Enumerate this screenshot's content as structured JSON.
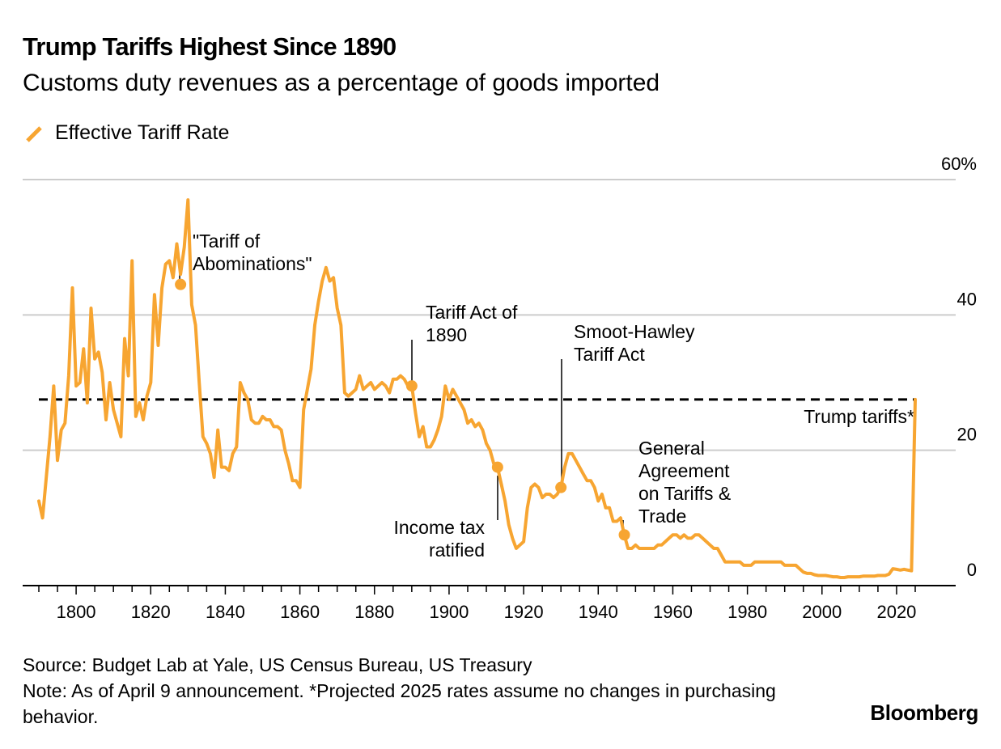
{
  "header": {
    "title": "Trump Tariffs Highest Since 1890",
    "subtitle": "Customs duty revenues as a percentage of goods imported"
  },
  "legend": {
    "label": "Effective Tariff Rate",
    "color": "#f7a531"
  },
  "colors": {
    "series": "#f7a531",
    "reference": "#000000",
    "grid": "#cccccc",
    "axis": "#000000"
  },
  "footer": {
    "source": "Source: Budget Lab at Yale, US Census Bureau, US Treasury",
    "note": "Note: As of April 9 announcement. *Projected 2025 rates assume no changes in purchasing behavior.",
    "brand": "Bloomberg"
  },
  "chart_data": {
    "type": "line",
    "title": "Trump Tariffs Highest Since 1890",
    "subtitle": "Customs duty revenues as a percentage of goods imported",
    "xlabel": "",
    "ylabel": "",
    "xlim": [
      1789,
      2026
    ],
    "ylim": [
      0,
      60
    ],
    "grid": true,
    "legend_position": "top-left",
    "x_ticks": [
      1800,
      1820,
      1840,
      1860,
      1880,
      1900,
      1920,
      1940,
      1960,
      1980,
      2000,
      2020
    ],
    "y_ticks": [
      {
        "value": 0,
        "label": "0"
      },
      {
        "value": 20,
        "label": "20"
      },
      {
        "value": 40,
        "label": "40"
      },
      {
        "value": 60,
        "label": "60%"
      }
    ],
    "series": [
      {
        "name": "Effective Tariff Rate",
        "color": "#f7a531",
        "points": [
          [
            1790,
            12.5
          ],
          [
            1791,
            10.0
          ],
          [
            1792,
            16.0
          ],
          [
            1793,
            22.0
          ],
          [
            1794,
            29.5
          ],
          [
            1795,
            18.5
          ],
          [
            1796,
            23.0
          ],
          [
            1797,
            24.0
          ],
          [
            1798,
            31.0
          ],
          [
            1799,
            44.0
          ],
          [
            1800,
            29.5
          ],
          [
            1801,
            30.0
          ],
          [
            1802,
            35.0
          ],
          [
            1803,
            27.0
          ],
          [
            1804,
            41.0
          ],
          [
            1805,
            33.5
          ],
          [
            1806,
            34.5
          ],
          [
            1807,
            31.5
          ],
          [
            1808,
            24.5
          ],
          [
            1809,
            30.0
          ],
          [
            1810,
            26.0
          ],
          [
            1811,
            24.0
          ],
          [
            1812,
            22.0
          ],
          [
            1813,
            36.5
          ],
          [
            1814,
            31.0
          ],
          [
            1815,
            48.0
          ],
          [
            1816,
            25.0
          ],
          [
            1817,
            27.0
          ],
          [
            1818,
            24.5
          ],
          [
            1819,
            28.0
          ],
          [
            1820,
            30.0
          ],
          [
            1821,
            43.0
          ],
          [
            1822,
            35.5
          ],
          [
            1823,
            44.0
          ],
          [
            1824,
            47.5
          ],
          [
            1825,
            48.0
          ],
          [
            1826,
            45.5
          ],
          [
            1827,
            50.5
          ],
          [
            1828,
            46.0
          ],
          [
            1829,
            50.0
          ],
          [
            1830,
            57.0
          ],
          [
            1831,
            41.5
          ],
          [
            1832,
            38.5
          ],
          [
            1833,
            30.0
          ],
          [
            1834,
            22.0
          ],
          [
            1835,
            21.0
          ],
          [
            1836,
            19.5
          ],
          [
            1837,
            16.0
          ],
          [
            1838,
            23.0
          ],
          [
            1839,
            17.5
          ],
          [
            1840,
            17.5
          ],
          [
            1841,
            17.0
          ],
          [
            1842,
            19.5
          ],
          [
            1843,
            20.5
          ],
          [
            1844,
            30.0
          ],
          [
            1845,
            28.5
          ],
          [
            1846,
            27.5
          ],
          [
            1847,
            24.5
          ],
          [
            1848,
            24.0
          ],
          [
            1849,
            24.0
          ],
          [
            1850,
            25.0
          ],
          [
            1851,
            24.5
          ],
          [
            1852,
            24.5
          ],
          [
            1853,
            23.5
          ],
          [
            1854,
            23.5
          ],
          [
            1855,
            23.0
          ],
          [
            1856,
            20.0
          ],
          [
            1857,
            18.0
          ],
          [
            1858,
            15.5
          ],
          [
            1859,
            15.5
          ],
          [
            1860,
            14.5
          ],
          [
            1861,
            26.0
          ],
          [
            1862,
            29.0
          ],
          [
            1863,
            32.0
          ],
          [
            1864,
            38.5
          ],
          [
            1865,
            42.0
          ],
          [
            1866,
            45.0
          ],
          [
            1867,
            47.0
          ],
          [
            1868,
            45.0
          ],
          [
            1869,
            45.5
          ],
          [
            1870,
            41.0
          ],
          [
            1871,
            38.5
          ],
          [
            1872,
            28.5
          ],
          [
            1873,
            28.0
          ],
          [
            1874,
            28.5
          ],
          [
            1875,
            29.0
          ],
          [
            1876,
            31.0
          ],
          [
            1877,
            29.0
          ],
          [
            1878,
            29.5
          ],
          [
            1879,
            30.0
          ],
          [
            1880,
            29.0
          ],
          [
            1881,
            29.5
          ],
          [
            1882,
            30.0
          ],
          [
            1883,
            29.5
          ],
          [
            1884,
            28.5
          ],
          [
            1885,
            30.5
          ],
          [
            1886,
            30.5
          ],
          [
            1887,
            31.0
          ],
          [
            1888,
            30.5
          ],
          [
            1889,
            29.5
          ],
          [
            1890,
            29.5
          ],
          [
            1891,
            25.5
          ],
          [
            1892,
            22.0
          ],
          [
            1893,
            23.5
          ],
          [
            1894,
            20.5
          ],
          [
            1895,
            20.5
          ],
          [
            1896,
            21.5
          ],
          [
            1897,
            23.0
          ],
          [
            1898,
            25.0
          ],
          [
            1899,
            29.5
          ],
          [
            1900,
            27.5
          ],
          [
            1901,
            29.0
          ],
          [
            1902,
            28.0
          ],
          [
            1903,
            27.0
          ],
          [
            1904,
            26.0
          ],
          [
            1905,
            24.0
          ],
          [
            1906,
            24.5
          ],
          [
            1907,
            23.5
          ],
          [
            1908,
            24.0
          ],
          [
            1909,
            23.0
          ],
          [
            1910,
            21.0
          ],
          [
            1911,
            20.0
          ],
          [
            1912,
            18.0
          ],
          [
            1913,
            17.5
          ],
          [
            1914,
            15.0
          ],
          [
            1915,
            12.5
          ],
          [
            1916,
            9.0
          ],
          [
            1917,
            7.0
          ],
          [
            1918,
            5.5
          ],
          [
            1919,
            6.0
          ],
          [
            1920,
            6.5
          ],
          [
            1921,
            11.5
          ],
          [
            1922,
            14.5
          ],
          [
            1923,
            15.0
          ],
          [
            1924,
            14.5
          ],
          [
            1925,
            13.0
          ],
          [
            1926,
            13.5
          ],
          [
            1927,
            13.5
          ],
          [
            1928,
            13.0
          ],
          [
            1929,
            13.5
          ],
          [
            1930,
            14.5
          ],
          [
            1931,
            17.5
          ],
          [
            1932,
            19.5
          ],
          [
            1933,
            19.5
          ],
          [
            1934,
            18.5
          ],
          [
            1935,
            17.5
          ],
          [
            1936,
            16.5
          ],
          [
            1937,
            15.5
          ],
          [
            1938,
            15.5
          ],
          [
            1939,
            14.5
          ],
          [
            1940,
            12.5
          ],
          [
            1941,
            13.5
          ],
          [
            1942,
            11.5
          ],
          [
            1943,
            11.5
          ],
          [
            1944,
            9.5
          ],
          [
            1945,
            9.5
          ],
          [
            1946,
            10.0
          ],
          [
            1947,
            7.5
          ],
          [
            1948,
            5.5
          ],
          [
            1949,
            5.5
          ],
          [
            1950,
            6.0
          ],
          [
            1951,
            5.5
          ],
          [
            1952,
            5.5
          ],
          [
            1953,
            5.5
          ],
          [
            1954,
            5.5
          ],
          [
            1955,
            5.5
          ],
          [
            1956,
            6.0
          ],
          [
            1957,
            6.0
          ],
          [
            1958,
            6.5
          ],
          [
            1959,
            7.0
          ],
          [
            1960,
            7.5
          ],
          [
            1961,
            7.5
          ],
          [
            1962,
            7.0
          ],
          [
            1963,
            7.5
          ],
          [
            1964,
            7.0
          ],
          [
            1965,
            7.0
          ],
          [
            1966,
            7.5
          ],
          [
            1967,
            7.5
          ],
          [
            1968,
            7.0
          ],
          [
            1969,
            6.5
          ],
          [
            1970,
            6.0
          ],
          [
            1971,
            5.5
          ],
          [
            1972,
            5.5
          ],
          [
            1973,
            4.5
          ],
          [
            1974,
            3.5
          ],
          [
            1975,
            3.5
          ],
          [
            1976,
            3.5
          ],
          [
            1977,
            3.5
          ],
          [
            1978,
            3.5
          ],
          [
            1979,
            3.0
          ],
          [
            1980,
            3.0
          ],
          [
            1981,
            3.0
          ],
          [
            1982,
            3.5
          ],
          [
            1983,
            3.5
          ],
          [
            1984,
            3.5
          ],
          [
            1985,
            3.5
          ],
          [
            1986,
            3.5
          ],
          [
            1987,
            3.5
          ],
          [
            1988,
            3.5
          ],
          [
            1989,
            3.5
          ],
          [
            1990,
            3.0
          ],
          [
            1991,
            3.0
          ],
          [
            1992,
            3.0
          ],
          [
            1993,
            3.0
          ],
          [
            1994,
            2.5
          ],
          [
            1995,
            2.0
          ],
          [
            1996,
            1.8
          ],
          [
            1997,
            1.8
          ],
          [
            1998,
            1.6
          ],
          [
            1999,
            1.5
          ],
          [
            2000,
            1.5
          ],
          [
            2001,
            1.5
          ],
          [
            2002,
            1.4
          ],
          [
            2003,
            1.3
          ],
          [
            2004,
            1.3
          ],
          [
            2005,
            1.2
          ],
          [
            2006,
            1.2
          ],
          [
            2007,
            1.3
          ],
          [
            2008,
            1.3
          ],
          [
            2009,
            1.3
          ],
          [
            2010,
            1.3
          ],
          [
            2011,
            1.4
          ],
          [
            2012,
            1.4
          ],
          [
            2013,
            1.4
          ],
          [
            2014,
            1.4
          ],
          [
            2015,
            1.5
          ],
          [
            2016,
            1.5
          ],
          [
            2017,
            1.5
          ],
          [
            2018,
            1.7
          ],
          [
            2019,
            2.5
          ],
          [
            2020,
            2.4
          ],
          [
            2021,
            2.3
          ],
          [
            2022,
            2.4
          ],
          [
            2023,
            2.3
          ],
          [
            2024,
            2.2
          ],
          [
            2025,
            27.5
          ]
        ]
      }
    ],
    "reference_lines": [
      {
        "value": 27.5,
        "label": "Trump tariffs*",
        "style": "dashed"
      }
    ],
    "annotations": [
      {
        "x": 1828,
        "y": 44.5,
        "lines": [
          "\"Tariff of",
          "Abominations\""
        ]
      },
      {
        "x": 1890,
        "y": 29.5,
        "lines": [
          "Tariff Act of",
          "1890"
        ]
      },
      {
        "x": 1913,
        "y": 17.5,
        "lines": [
          "Income tax",
          "ratified"
        ]
      },
      {
        "x": 1930,
        "y": 14.5,
        "lines": [
          "Smoot-Hawley",
          "Tariff Act"
        ]
      },
      {
        "x": 1947,
        "y": 7.5,
        "lines": [
          "General",
          "Agreement",
          "on Tariffs &",
          "Trade"
        ]
      }
    ]
  }
}
